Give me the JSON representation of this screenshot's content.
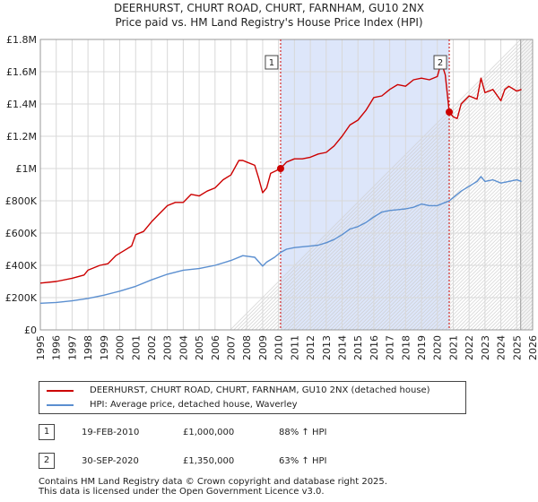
{
  "chart_data": {
    "type": "line",
    "title": "DEERHURST, CHURT ROAD, CHURT, FARNHAM, GU10 2NX",
    "subtitle": "Price paid vs. HM Land Registry's House Price Index (HPI)",
    "xlim": [
      1995,
      2026
    ],
    "ylim": [
      0,
      1800000
    ],
    "x_ticks": [
      "1995",
      "1996",
      "1997",
      "1998",
      "1999",
      "2000",
      "2001",
      "2002",
      "2003",
      "2004",
      "2005",
      "2006",
      "2007",
      "2008",
      "2009",
      "2010",
      "2011",
      "2012",
      "2013",
      "2014",
      "2015",
      "2016",
      "2017",
      "2018",
      "2019",
      "2020",
      "2021",
      "2022",
      "2023",
      "2024",
      "2025",
      "2026"
    ],
    "y_ticks": [
      {
        "value": 0,
        "label": "£0"
      },
      {
        "value": 200000,
        "label": "£200K"
      },
      {
        "value": 400000,
        "label": "£400K"
      },
      {
        "value": 600000,
        "label": "£600K"
      },
      {
        "value": 800000,
        "label": "£800K"
      },
      {
        "value": 1000000,
        "label": "£1M"
      },
      {
        "value": 1200000,
        "label": "£1.2M"
      },
      {
        "value": 1400000,
        "label": "£1.4M"
      },
      {
        "value": 1600000,
        "label": "£1.6M"
      },
      {
        "value": 1800000,
        "label": "£1.8M"
      }
    ],
    "highlight_band": [
      2010.13,
      2020.75
    ],
    "future_start": 2025.25,
    "series": [
      {
        "name": "DEERHURST, CHURT ROAD, CHURT, FARNHAM, GU10 2NX (detached house)",
        "color": "#cc0000",
        "x": [
          1995.0,
          1996.0,
          1997.0,
          1997.75,
          1998.0,
          1998.75,
          1999.25,
          1999.75,
          2000.25,
          2000.75,
          2001.0,
          2001.5,
          2002.0,
          2002.5,
          2003.0,
          2003.5,
          2004.0,
          2004.5,
          2005.0,
          2005.5,
          2006.0,
          2006.5,
          2007.0,
          2007.5,
          2007.75,
          2008.0,
          2008.5,
          2008.75,
          2009.0,
          2009.25,
          2009.5,
          2010.13,
          2010.5,
          2011.0,
          2011.5,
          2012.0,
          2012.5,
          2013.0,
          2013.5,
          2014.0,
          2014.5,
          2015.0,
          2015.5,
          2016.0,
          2016.5,
          2017.0,
          2017.5,
          2018.0,
          2018.5,
          2019.0,
          2019.5,
          2020.0,
          2020.25,
          2020.5,
          2020.75,
          2021.0,
          2021.25,
          2021.5,
          2022.0,
          2022.5,
          2022.75,
          2023.0,
          2023.5,
          2024.0,
          2024.25,
          2024.5,
          2025.0,
          2025.3
        ],
        "y": [
          290000,
          300000,
          320000,
          340000,
          370000,
          400000,
          410000,
          460000,
          490000,
          520000,
          590000,
          610000,
          670000,
          720000,
          770000,
          790000,
          790000,
          840000,
          830000,
          860000,
          880000,
          930000,
          960000,
          1050000,
          1050000,
          1040000,
          1020000,
          940000,
          850000,
          880000,
          970000,
          1000000,
          1040000,
          1060000,
          1060000,
          1070000,
          1090000,
          1100000,
          1140000,
          1200000,
          1270000,
          1300000,
          1360000,
          1440000,
          1450000,
          1490000,
          1520000,
          1510000,
          1550000,
          1560000,
          1550000,
          1570000,
          1660000,
          1580000,
          1350000,
          1320000,
          1310000,
          1400000,
          1450000,
          1430000,
          1560000,
          1470000,
          1490000,
          1420000,
          1490000,
          1510000,
          1480000,
          1490000
        ]
      },
      {
        "name": "HPI: Average price, detached house, Waverley",
        "color": "#5b8fd0",
        "x": [
          1995.0,
          1996.0,
          1997.0,
          1998.0,
          1999.0,
          2000.0,
          2001.0,
          2002.0,
          2003.0,
          2004.0,
          2005.0,
          2006.0,
          2007.0,
          2007.75,
          2008.5,
          2009.0,
          2009.25,
          2009.75,
          2010.13,
          2010.5,
          2011.0,
          2011.5,
          2012.0,
          2012.5,
          2013.0,
          2013.5,
          2014.0,
          2014.5,
          2015.0,
          2015.5,
          2016.0,
          2016.5,
          2017.0,
          2017.5,
          2018.0,
          2018.5,
          2019.0,
          2019.5,
          2020.0,
          2020.5,
          2020.75,
          2021.0,
          2021.5,
          2022.0,
          2022.5,
          2022.75,
          2023.0,
          2023.5,
          2024.0,
          2024.5,
          2025.0,
          2025.3
        ],
        "y": [
          165000,
          170000,
          180000,
          195000,
          215000,
          240000,
          270000,
          310000,
          345000,
          370000,
          380000,
          400000,
          430000,
          460000,
          450000,
          395000,
          420000,
          450000,
          480000,
          500000,
          510000,
          515000,
          520000,
          525000,
          540000,
          560000,
          590000,
          625000,
          640000,
          665000,
          700000,
          730000,
          740000,
          745000,
          750000,
          760000,
          780000,
          770000,
          770000,
          790000,
          800000,
          820000,
          860000,
          890000,
          920000,
          950000,
          920000,
          930000,
          910000,
          920000,
          930000,
          920000
        ]
      }
    ],
    "sales": [
      {
        "label": "1",
        "x": 2010.13,
        "y": 1000000
      },
      {
        "label": "2",
        "x": 2020.75,
        "y": 1350000
      }
    ]
  },
  "legend": {
    "property": "DEERHURST, CHURT ROAD, CHURT, FARNHAM, GU10 2NX (detached house)",
    "hpi": "HPI: Average price, detached house, Waverley"
  },
  "sales_table": [
    {
      "label": "1",
      "date": "19-FEB-2010",
      "price": "£1,000,000",
      "hpi": "88% ↑ HPI"
    },
    {
      "label": "2",
      "date": "30-SEP-2020",
      "price": "£1,350,000",
      "hpi": "63% ↑ HPI"
    }
  ],
  "footer": {
    "line1": "Contains HM Land Registry data © Crown copyright and database right 2025.",
    "line2": "This data is licensed under the Open Government Licence v3.0."
  },
  "colors": {
    "property": "#cc0000",
    "hpi": "#5b8fd0",
    "band": "#dde6fa",
    "grid": "#d8d8d8"
  }
}
